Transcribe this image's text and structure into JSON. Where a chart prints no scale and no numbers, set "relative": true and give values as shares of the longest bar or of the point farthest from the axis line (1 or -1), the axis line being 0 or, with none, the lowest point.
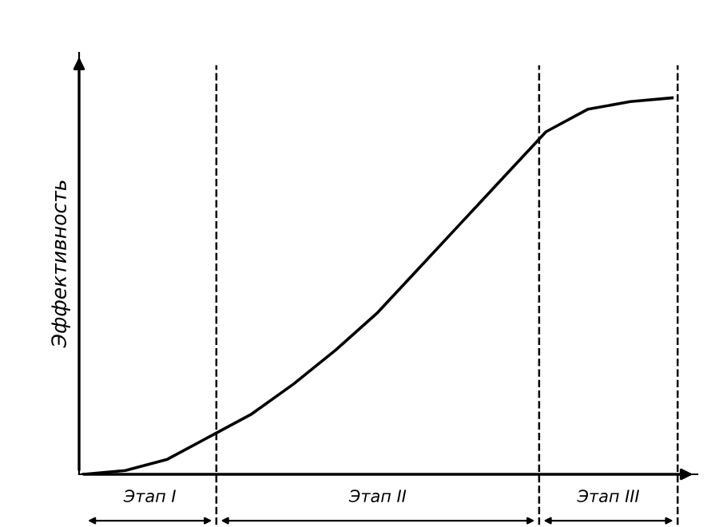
{
  "chart_data": {
    "type": "line",
    "relative": true,
    "ylabel": "Эффективность",
    "categories": [
      null,
      null,
      null,
      null,
      null,
      null,
      null,
      null,
      null,
      null,
      null,
      null,
      null,
      null,
      null
    ],
    "series": [
      {
        "color": "#000000",
        "values": [
          0,
          0.01,
          0.04,
          0.1,
          0.16,
          0.24,
          0.33,
          0.43,
          0.55,
          0.67,
          0.79,
          0.91,
          0.97,
          0.99,
          1
        ]
      }
    ],
    "annotations": [
      "Этап I",
      "Этап II",
      "Этап III"
    ],
    "legend": false,
    "marker": "none",
    "line_style": "solid"
  }
}
